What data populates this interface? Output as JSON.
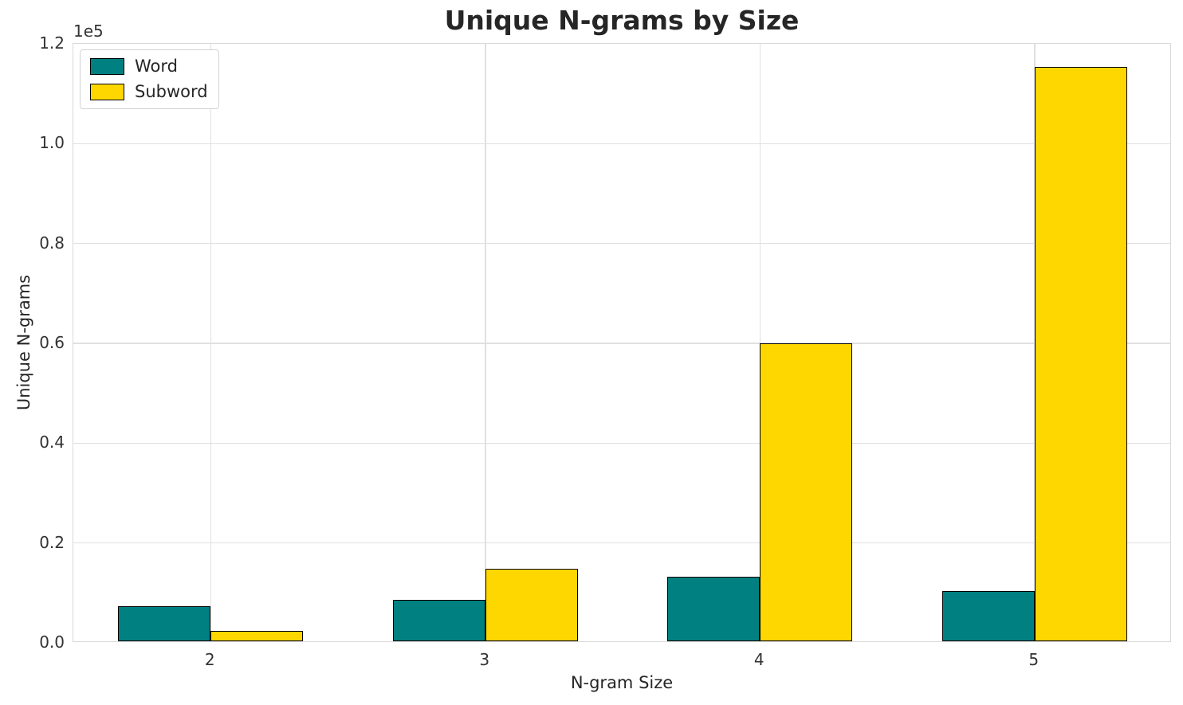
{
  "title": "Unique N-grams by Size",
  "axes": {
    "xlabel": "N-gram Size",
    "ylabel": "Unique N-grams",
    "offset_text": "1e5"
  },
  "legend": {
    "entries": [
      {
        "label": "Word",
        "color": "#008080"
      },
      {
        "label": "Subword",
        "color": "#FFD700"
      }
    ]
  },
  "colors": {
    "word_bar": "#008080",
    "subword_bar": "#FFD700",
    "bar_edge": "#000000",
    "grid": "#e0e0e0",
    "spine": "#d9d9d9",
    "text": "#262626"
  },
  "chart_data": {
    "type": "bar",
    "categories": [
      "2",
      "3",
      "4",
      "5"
    ],
    "series": [
      {
        "name": "Word",
        "color": "#008080",
        "values": [
          7000,
          8300,
          13000,
          10100
        ]
      },
      {
        "name": "Subword",
        "color": "#FFD700",
        "values": [
          2100,
          14600,
          59700,
          115000
        ]
      }
    ],
    "title": "Unique N-grams by Size",
    "xlabel": "N-gram Size",
    "ylabel": "Unique N-grams",
    "ylim": [
      0,
      120000
    ],
    "ytick_step": 20000,
    "ytick_labels": [
      "0.0",
      "0.2",
      "0.4",
      "0.6",
      "0.8",
      "1.0",
      "1.2"
    ],
    "y_offset_label": "1e5",
    "grid": true,
    "legend_position": "upper left",
    "bar_edge_color": "#000000"
  }
}
